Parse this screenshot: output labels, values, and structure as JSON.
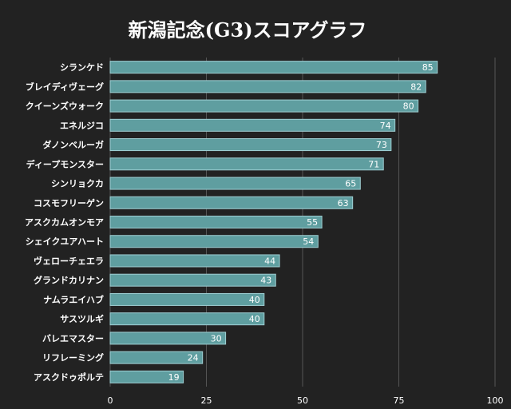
{
  "chart_data": {
    "type": "bar",
    "orientation": "horizontal",
    "title": "新潟記念(G3)スコアグラフ",
    "xlabel": "",
    "ylabel": "",
    "xlim": [
      0,
      100
    ],
    "xticks": [
      0,
      25,
      50,
      75,
      100
    ],
    "grid": true,
    "categories": [
      "シランケド",
      "ブレイディヴェーグ",
      "クイーンズウォーク",
      "エネルジコ",
      "ダノンベルーガ",
      "ディープモンスター",
      "シンリョクカ",
      "コスモフリーゲン",
      "アスクカムオンモア",
      "シェイクユアハート",
      "ヴェローチェエラ",
      "グランドカリナン",
      "ナムラエイハブ",
      "サスツルギ",
      "バレエマスター",
      "リフレーミング",
      "アスクドゥポルテ"
    ],
    "values": [
      85,
      82,
      80,
      74,
      73,
      71,
      65,
      63,
      55,
      54,
      44,
      43,
      40,
      40,
      30,
      24,
      19
    ],
    "colors": {
      "bar": "#5f9ea0",
      "bar_edge": "#9fcfd3",
      "background": "#222222",
      "grid": "#555555",
      "text": "#ffffff"
    }
  }
}
